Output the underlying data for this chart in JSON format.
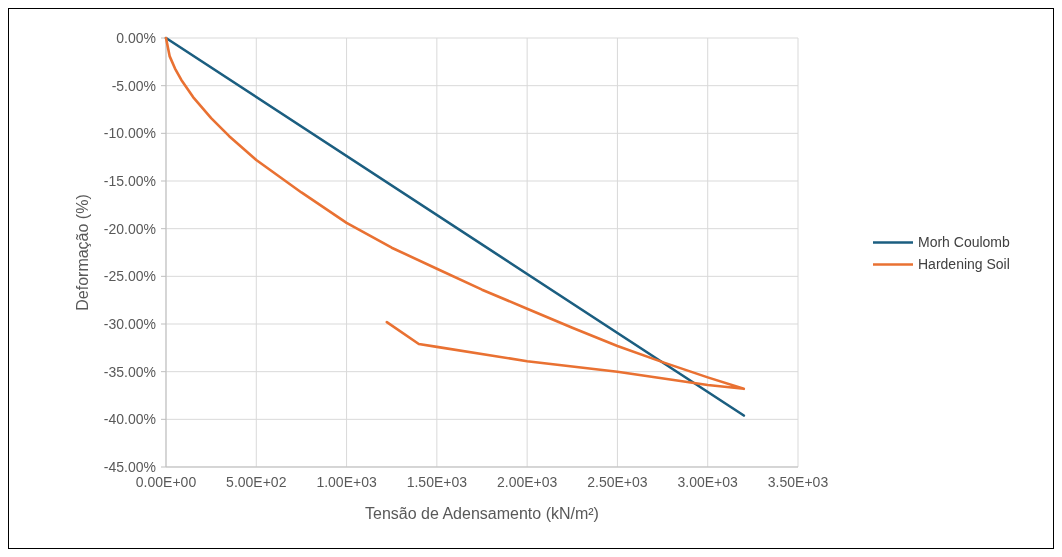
{
  "chart_data": {
    "type": "line",
    "xlabel": "Tensão de Adensamento (kN/m²)",
    "ylabel": "Deformação (%)",
    "xlim": [
      0,
      3500
    ],
    "ylim": [
      -45,
      0
    ],
    "xticks": [
      {
        "value": 0,
        "label": "0.00E+00"
      },
      {
        "value": 500,
        "label": "5.00E+02"
      },
      {
        "value": 1000,
        "label": "1.00E+03"
      },
      {
        "value": 1500,
        "label": "1.50E+03"
      },
      {
        "value": 2000,
        "label": "2.00E+03"
      },
      {
        "value": 2500,
        "label": "2.50E+03"
      },
      {
        "value": 3000,
        "label": "3.00E+03"
      },
      {
        "value": 3500,
        "label": "3.50E+03"
      }
    ],
    "yticks": [
      {
        "value": 0,
        "label": "0.00%"
      },
      {
        "value": -5,
        "label": "-5.00%"
      },
      {
        "value": -10,
        "label": "-10.00%"
      },
      {
        "value": -15,
        "label": "-15.00%"
      },
      {
        "value": -20,
        "label": "-20.00%"
      },
      {
        "value": -25,
        "label": "-25.00%"
      },
      {
        "value": -30,
        "label": "-30.00%"
      },
      {
        "value": -35,
        "label": "-35.00%"
      },
      {
        "value": -40,
        "label": "-40.00%"
      },
      {
        "value": -45,
        "label": "-45.00%"
      }
    ],
    "grid": true,
    "legend": "right",
    "marker": "none",
    "line_style": "solid",
    "series": [
      {
        "name": "Morh Coulomb",
        "color": "#1b5e80",
        "x": [
          0,
          3200
        ],
        "values": [
          0,
          -39.6
        ]
      },
      {
        "name": "Hardening Soil",
        "color": "#e97132",
        "x": [
          0,
          20,
          50,
          85,
          150,
          250,
          350,
          500,
          750,
          1000,
          1250,
          1500,
          1750,
          2000,
          2250,
          2500,
          2750,
          3000,
          3200,
          3000,
          2500,
          2000,
          1500,
          1400,
          1223
        ],
        "values": [
          0,
          -1.9,
          -3.2,
          -4.4,
          -6.2,
          -8.4,
          -10.3,
          -12.8,
          -16.2,
          -19.4,
          -22,
          -24.2,
          -26.4,
          -28.4,
          -30.4,
          -32.3,
          -34,
          -35.6,
          -36.8,
          -36.4,
          -35,
          -33.9,
          -32.4,
          -32.1,
          -29.8
        ]
      }
    ]
  }
}
